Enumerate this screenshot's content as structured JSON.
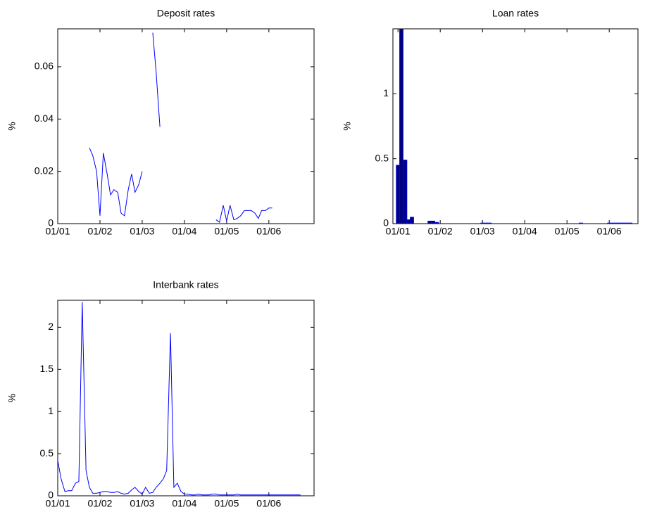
{
  "chart_data": [
    {
      "type": "line",
      "title": "Deposit rates",
      "ylabel": "%",
      "color": "#0000ff",
      "xlim": [
        2001,
        2007.07
      ],
      "ylim": [
        0,
        0.0745
      ],
      "xticks": [
        {
          "value": 2001,
          "label": "01/01"
        },
        {
          "value": 2002,
          "label": "01/02"
        },
        {
          "value": 2003,
          "label": "01/03"
        },
        {
          "value": 2004,
          "label": "01/04"
        },
        {
          "value": 2005,
          "label": "01/05"
        },
        {
          "value": 2006,
          "label": "01/06"
        }
      ],
      "yticks": [
        0,
        0.02,
        0.04,
        0.06
      ],
      "x": [
        2001.75,
        2001.83,
        2001.92,
        2002,
        2002.08,
        2002.17,
        2002.25,
        2002.33,
        2002.42,
        2002.5,
        2002.58,
        2002.67,
        2002.75,
        2002.83,
        2002.92,
        2003,
        2003.08,
        2003.25,
        2003.33,
        2003.42,
        2003.5,
        2004.75,
        2004.83,
        2004.92,
        2005,
        2005.08,
        2005.17,
        2005.25,
        2005.33,
        2005.42,
        2005.5,
        2005.58,
        2005.67,
        2005.75,
        2005.83,
        2005.92,
        2006,
        2006.08
      ],
      "values": [
        0.029,
        0.026,
        0.02,
        0.003,
        0.027,
        0.019,
        0.011,
        0.013,
        0.012,
        0.004,
        0.003,
        0.013,
        0.019,
        0.012,
        0.015,
        0.02,
        null,
        0.073,
        0.058,
        0.037,
        null,
        0.0015,
        0.0005,
        0.007,
        0.001,
        0.007,
        0.0015,
        0.002,
        0.003,
        0.005,
        0.005,
        0.005,
        0.004,
        0.002,
        0.005,
        0.005,
        0.006,
        0.006
      ]
    },
    {
      "type": "bar",
      "title": "Loan rates",
      "ylabel": "%",
      "color": "#000080",
      "edgecolor": "#0000ff",
      "xlim": [
        2000.88,
        2006.68
      ],
      "ylim": [
        0,
        1.5
      ],
      "xticks": [
        {
          "value": 2001,
          "label": "01/01"
        },
        {
          "value": 2002,
          "label": "01/02"
        },
        {
          "value": 2003,
          "label": "01/03"
        },
        {
          "value": 2004,
          "label": "01/04"
        },
        {
          "value": 2005,
          "label": "01/05"
        },
        {
          "value": 2006,
          "label": "01/06"
        }
      ],
      "yticks": [
        0,
        0.5,
        1
      ],
      "x": [
        2001,
        2001.08,
        2001.17,
        2001.25,
        2001.33,
        2001.75,
        2001.83,
        2001.92,
        2003,
        2003.08,
        2003.17,
        2005.33,
        2006,
        2006.08,
        2006.17,
        2006.25,
        2006.33,
        2006.42,
        2006.5
      ],
      "values": [
        0.45,
        1.6,
        0.49,
        0.03,
        0.05,
        0.02,
        0.02,
        0.01,
        0.005,
        0.005,
        0.005,
        0.005,
        0.005,
        0.005,
        0.005,
        0.005,
        0.005,
        0.005,
        0.005
      ]
    },
    {
      "type": "line",
      "title": "Interbank rates",
      "ylabel": "%",
      "color": "#0000ff",
      "xlim": [
        2001,
        2007.07
      ],
      "ylim": [
        0,
        2.32
      ],
      "xticks": [
        {
          "value": 2001,
          "label": "01/01"
        },
        {
          "value": 2002,
          "label": "01/02"
        },
        {
          "value": 2003,
          "label": "01/03"
        },
        {
          "value": 2004,
          "label": "01/04"
        },
        {
          "value": 2005,
          "label": "01/05"
        },
        {
          "value": 2006,
          "label": "01/06"
        }
      ],
      "yticks": [
        0,
        0.5,
        1,
        1.5,
        2
      ],
      "x": [
        2001,
        2001.08,
        2001.17,
        2001.25,
        2001.33,
        2001.42,
        2001.5,
        2001.58,
        2001.67,
        2001.75,
        2001.83,
        2001.92,
        2002,
        2002.08,
        2002.17,
        2002.25,
        2002.33,
        2002.42,
        2002.5,
        2002.58,
        2002.67,
        2002.75,
        2002.83,
        2002.92,
        2003,
        2003.08,
        2003.17,
        2003.25,
        2003.33,
        2003.42,
        2003.5,
        2003.58,
        2003.67,
        2003.75,
        2003.83,
        2003.92,
        2004,
        2004.08,
        2004.17,
        2004.25,
        2004.33,
        2004.42,
        2004.5,
        2004.58,
        2004.67,
        2004.75,
        2004.83,
        2004.92,
        2005,
        2005.08,
        2005.17,
        2005.25,
        2005.33,
        2005.42,
        2005.5,
        2005.58,
        2005.67,
        2005.75,
        2005.83,
        2005.92,
        2006,
        2006.08,
        2006.17,
        2006.25,
        2006.33,
        2006.42,
        2006.5,
        2006.58,
        2006.67,
        2006.75
      ],
      "values": [
        0.42,
        0.2,
        0.05,
        0.06,
        0.06,
        0.15,
        0.17,
        2.3,
        0.3,
        0.1,
        0.03,
        0.03,
        0.04,
        0.05,
        0.05,
        0.04,
        0.04,
        0.05,
        0.03,
        0.02,
        0.03,
        0.07,
        0.1,
        0.05,
        0.02,
        0.1,
        0.03,
        0.04,
        0.1,
        0.15,
        0.2,
        0.3,
        1.93,
        0.1,
        0.15,
        0.05,
        0.02,
        0.02,
        0.01,
        0.01,
        0.02,
        0.01,
        0.01,
        0.01,
        0.02,
        0.02,
        0.01,
        0.01,
        0.01,
        0.01,
        0.01,
        0.02,
        0.01,
        0.01,
        0.01,
        0.01,
        0.01,
        0.01,
        0.01,
        0.01,
        0.01,
        0.01,
        0.01,
        0.01,
        0.01,
        0.01,
        0.01,
        0.01,
        0.01,
        0.01
      ]
    }
  ]
}
